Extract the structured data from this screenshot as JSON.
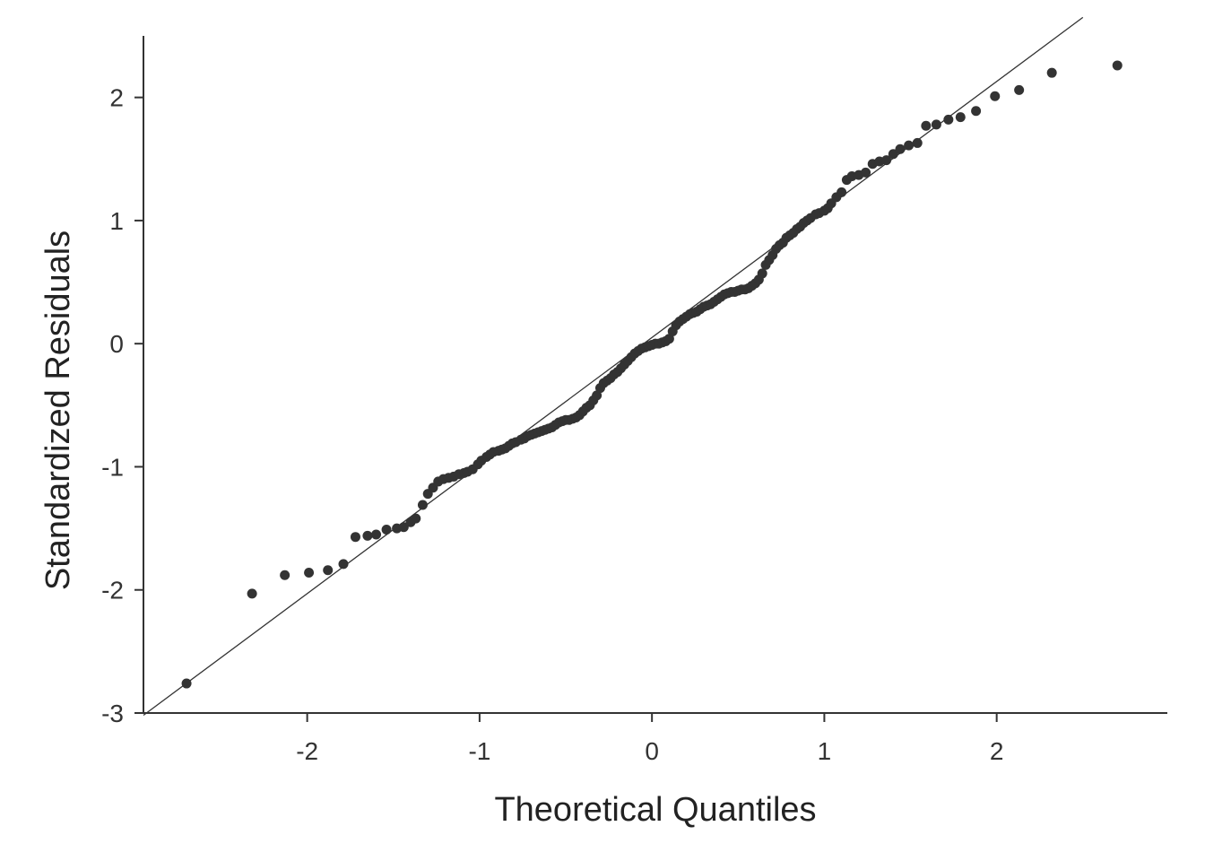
{
  "chart_data": {
    "type": "scatter",
    "title": "",
    "xlabel": "Theoretical Quantiles",
    "ylabel": "Standardized Residuals",
    "xlim": [
      -2.95,
      2.99
    ],
    "ylim": [
      -3.0,
      2.5
    ],
    "xticks": [
      -2,
      -1,
      0,
      1,
      2
    ],
    "yticks": [
      -3,
      -2,
      -1,
      0,
      1,
      2
    ],
    "xtick_labels": [
      "-2",
      "-1",
      "0",
      "1",
      "2"
    ],
    "ytick_labels": [
      "-3",
      "-2",
      "-1",
      "0",
      "1",
      "2"
    ],
    "grid": false,
    "legend": "none",
    "point_color": "#333333",
    "reference_line": {
      "slope": 1.04,
      "intercept": 0.05,
      "x_range": [
        -2.95,
        2.5
      ]
    },
    "series": [
      {
        "x": [
          -2.7,
          -2.32,
          -2.13,
          -1.99,
          -1.88,
          -1.79,
          -1.72,
          -1.65,
          -1.6,
          -1.54,
          -1.48,
          -1.44,
          -1.4,
          -1.37,
          -1.33,
          -1.3,
          -1.27,
          -1.24,
          -1.21,
          -1.18,
          -1.15,
          -1.12,
          -1.09,
          -1.07,
          -1.04,
          -1.01,
          -0.99,
          -0.96,
          -0.94,
          -0.92,
          -0.89,
          -0.87,
          -0.85,
          -0.83,
          -0.81,
          -0.79,
          -0.76,
          -0.74,
          -0.72,
          -0.7,
          -0.68,
          -0.66,
          -0.64,
          -0.62,
          -0.6,
          -0.58,
          -0.56,
          -0.54,
          -0.52,
          -0.5,
          -0.48,
          -0.46,
          -0.44,
          -0.42,
          -0.4,
          -0.38,
          -0.36,
          -0.34,
          -0.32,
          -0.3,
          -0.28,
          -0.26,
          -0.24,
          -0.22,
          -0.2,
          -0.18,
          -0.16,
          -0.14,
          -0.12,
          -0.1,
          -0.08,
          -0.06,
          -0.04,
          -0.02,
          0.0,
          0.02,
          0.04,
          0.06,
          0.08,
          0.1,
          0.12,
          0.14,
          0.16,
          0.18,
          0.2,
          0.22,
          0.24,
          0.26,
          0.28,
          0.3,
          0.32,
          0.34,
          0.36,
          0.38,
          0.4,
          0.42,
          0.44,
          0.46,
          0.48,
          0.5,
          0.52,
          0.54,
          0.56,
          0.58,
          0.6,
          0.62,
          0.64,
          0.66,
          0.68,
          0.7,
          0.72,
          0.74,
          0.76,
          0.78,
          0.8,
          0.82,
          0.84,
          0.86,
          0.88,
          0.9,
          0.92,
          0.95,
          0.97,
          1.0,
          1.02,
          1.04,
          1.07,
          1.1,
          1.13,
          1.16,
          1.2,
          1.24,
          1.28,
          1.32,
          1.36,
          1.4,
          1.44,
          1.49,
          1.54,
          1.59,
          1.65,
          1.72,
          1.79,
          1.88,
          1.99,
          2.13,
          2.32,
          2.7
        ],
        "y": [
          -2.76,
          -2.03,
          -1.88,
          -1.86,
          -1.84,
          -1.79,
          -1.57,
          -1.56,
          -1.55,
          -1.51,
          -1.5,
          -1.49,
          -1.45,
          -1.42,
          -1.31,
          -1.22,
          -1.17,
          -1.12,
          -1.1,
          -1.09,
          -1.08,
          -1.06,
          -1.05,
          -1.04,
          -1.02,
          -0.98,
          -0.95,
          -0.92,
          -0.9,
          -0.88,
          -0.87,
          -0.86,
          -0.85,
          -0.83,
          -0.81,
          -0.8,
          -0.78,
          -0.77,
          -0.75,
          -0.74,
          -0.73,
          -0.72,
          -0.71,
          -0.7,
          -0.69,
          -0.68,
          -0.66,
          -0.64,
          -0.63,
          -0.62,
          -0.62,
          -0.61,
          -0.6,
          -0.58,
          -0.55,
          -0.52,
          -0.5,
          -0.46,
          -0.42,
          -0.36,
          -0.32,
          -0.3,
          -0.28,
          -0.25,
          -0.23,
          -0.2,
          -0.17,
          -0.14,
          -0.11,
          -0.08,
          -0.06,
          -0.04,
          -0.03,
          -0.02,
          -0.01,
          0.0,
          0.0,
          0.01,
          0.02,
          0.04,
          0.1,
          0.15,
          0.18,
          0.2,
          0.22,
          0.24,
          0.25,
          0.26,
          0.28,
          0.3,
          0.31,
          0.32,
          0.34,
          0.36,
          0.38,
          0.4,
          0.41,
          0.42,
          0.42,
          0.43,
          0.44,
          0.44,
          0.45,
          0.47,
          0.49,
          0.52,
          0.57,
          0.64,
          0.68,
          0.72,
          0.77,
          0.8,
          0.82,
          0.86,
          0.88,
          0.9,
          0.93,
          0.95,
          0.98,
          1.0,
          1.02,
          1.05,
          1.06,
          1.08,
          1.1,
          1.14,
          1.19,
          1.23,
          1.33,
          1.36,
          1.37,
          1.39,
          1.46,
          1.48,
          1.49,
          1.54,
          1.58,
          1.61,
          1.63,
          1.77,
          1.78,
          1.82,
          1.84,
          1.89,
          2.01,
          2.06,
          2.2,
          2.26
        ]
      }
    ]
  }
}
